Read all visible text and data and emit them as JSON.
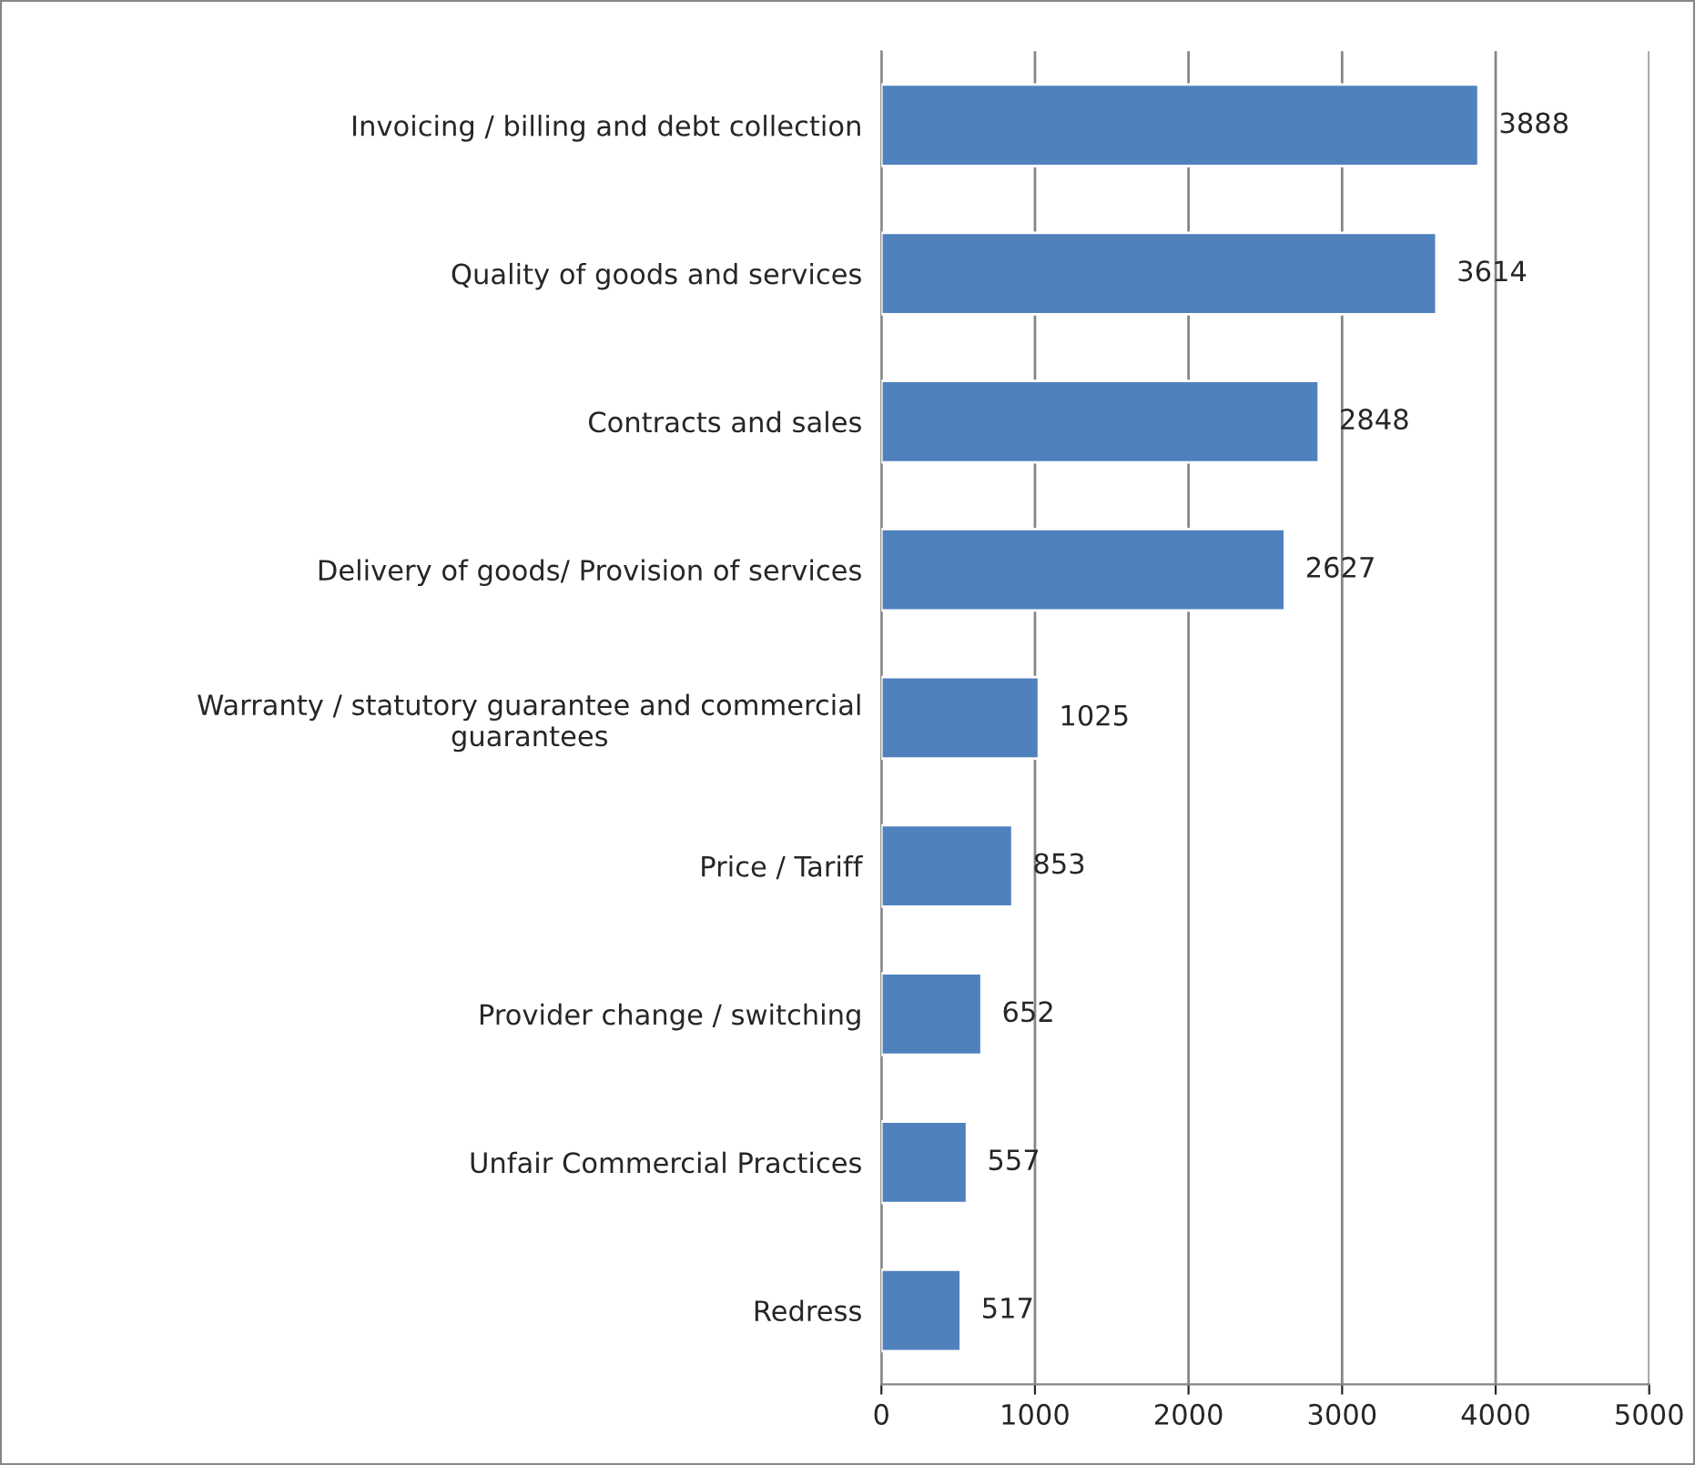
{
  "chart_data": {
    "type": "bar",
    "orientation": "horizontal",
    "categories": [
      "Invoicing / billing and debt collection",
      "Quality of goods and services",
      "Contracts and sales",
      "Delivery of goods/ Provision of services",
      "Warranty / statutory guarantee and commercial\nguarantees",
      "Price / Tariff",
      "Provider change / switching",
      "Unfair Commercial Practices",
      "Redress"
    ],
    "values": [
      3888,
      3614,
      2848,
      2627,
      1025,
      853,
      652,
      557,
      517
    ],
    "color": "#4f81bd",
    "xlim": [
      0,
      5000
    ],
    "xticks": [
      0,
      1000,
      2000,
      3000,
      4000,
      5000
    ],
    "grid": "x",
    "data_labels": true
  }
}
